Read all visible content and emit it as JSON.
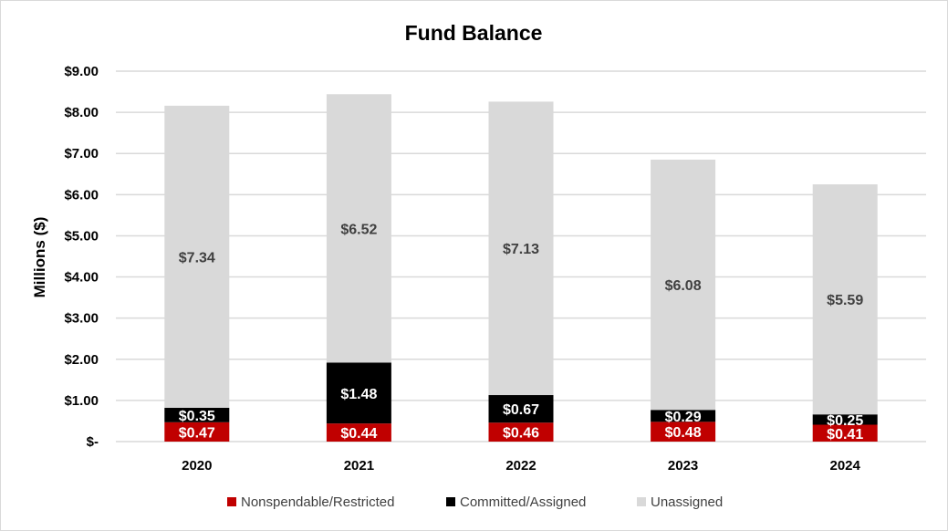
{
  "chart_data": {
    "type": "bar",
    "stacked": true,
    "title": "Fund Balance",
    "ylabel": "Millions ($)",
    "xlabel": "",
    "categories": [
      "2020",
      "2021",
      "2022",
      "2023",
      "2024"
    ],
    "ylim": [
      0,
      9
    ],
    "yticks": [
      {
        "value": 0,
        "label": "$-"
      },
      {
        "value": 1,
        "label": "$1.00"
      },
      {
        "value": 2,
        "label": "$2.00"
      },
      {
        "value": 3,
        "label": "$3.00"
      },
      {
        "value": 4,
        "label": "$4.00"
      },
      {
        "value": 5,
        "label": "$5.00"
      },
      {
        "value": 6,
        "label": "$6.00"
      },
      {
        "value": 7,
        "label": "$7.00"
      },
      {
        "value": 8,
        "label": "$8.00"
      },
      {
        "value": 9,
        "label": "$9.00"
      }
    ],
    "grid": true,
    "legend_position": "bottom",
    "series": [
      {
        "name": "Nonspendable/Restricted",
        "color": "#c00000",
        "label_color": "#ffffff",
        "values": [
          0.47,
          0.44,
          0.46,
          0.48,
          0.41
        ],
        "labels": [
          "$0.47",
          "$0.44",
          "$0.46",
          "$0.48",
          "$0.41"
        ]
      },
      {
        "name": "Committed/Assigned",
        "color": "#000000",
        "label_color": "#ffffff",
        "values": [
          0.35,
          1.48,
          0.67,
          0.29,
          0.25
        ],
        "labels": [
          "$0.35",
          "$1.48",
          "$0.67",
          "$0.29",
          "$0.25"
        ]
      },
      {
        "name": "Unassigned",
        "color": "#d9d9d9",
        "label_color": "#404040",
        "values": [
          7.34,
          6.52,
          7.13,
          6.08,
          5.59
        ],
        "labels": [
          "$7.34",
          "$6.52",
          "$7.13",
          "$6.08",
          "$5.59"
        ]
      }
    ],
    "gridline_color": "#d9d9d9"
  }
}
